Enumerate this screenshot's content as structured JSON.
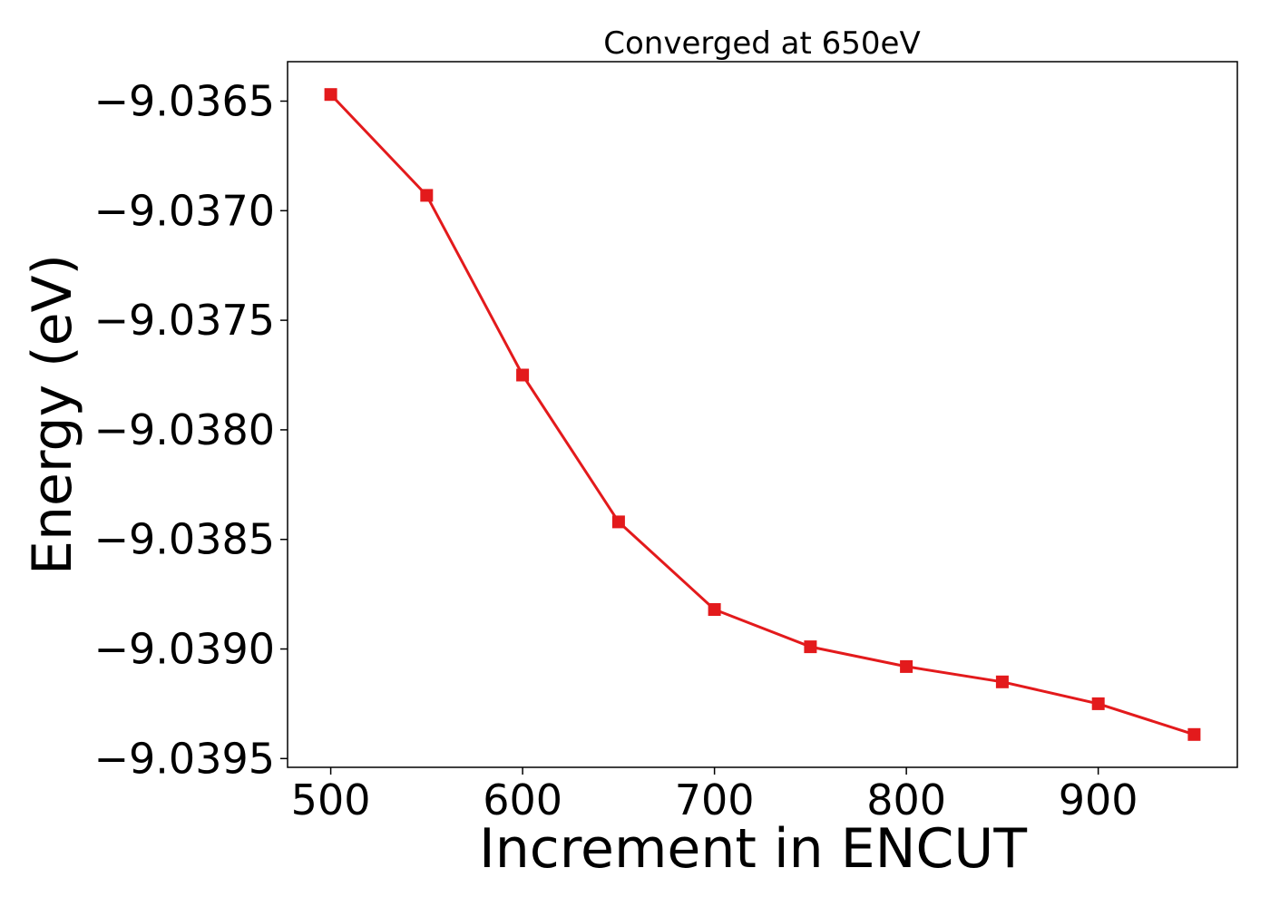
{
  "chart_data": {
    "type": "line",
    "title": "Converged at 650eV",
    "xlabel": "Increment in ENCUT",
    "ylabel": "Energy (eV)",
    "x": [
      500,
      550,
      600,
      650,
      700,
      750,
      800,
      850,
      900,
      950
    ],
    "series": [
      {
        "values": [
          -9.03647,
          -9.03693,
          -9.03775,
          -9.03842,
          -9.03882,
          -9.03899,
          -9.03908,
          -9.03915,
          -9.03925,
          -9.03939
        ],
        "color": "#e31a1c",
        "marker": "square"
      }
    ],
    "xlim": [
      477.5,
      972.5
    ],
    "ylim": [
      -9.03954,
      -9.03632
    ],
    "xticks": [
      500,
      600,
      700,
      800,
      900
    ],
    "xtick_labels": [
      "500",
      "600",
      "700",
      "800",
      "900"
    ],
    "yticks": [
      -9.0365,
      -9.037,
      -9.0375,
      -9.038,
      -9.0385,
      -9.039,
      -9.0395
    ],
    "ytick_labels": [
      "−9.0365",
      "−9.0370",
      "−9.0375",
      "−9.0380",
      "−9.0385",
      "−9.0390",
      "−9.0395"
    ],
    "grid": false,
    "legend": false
  }
}
